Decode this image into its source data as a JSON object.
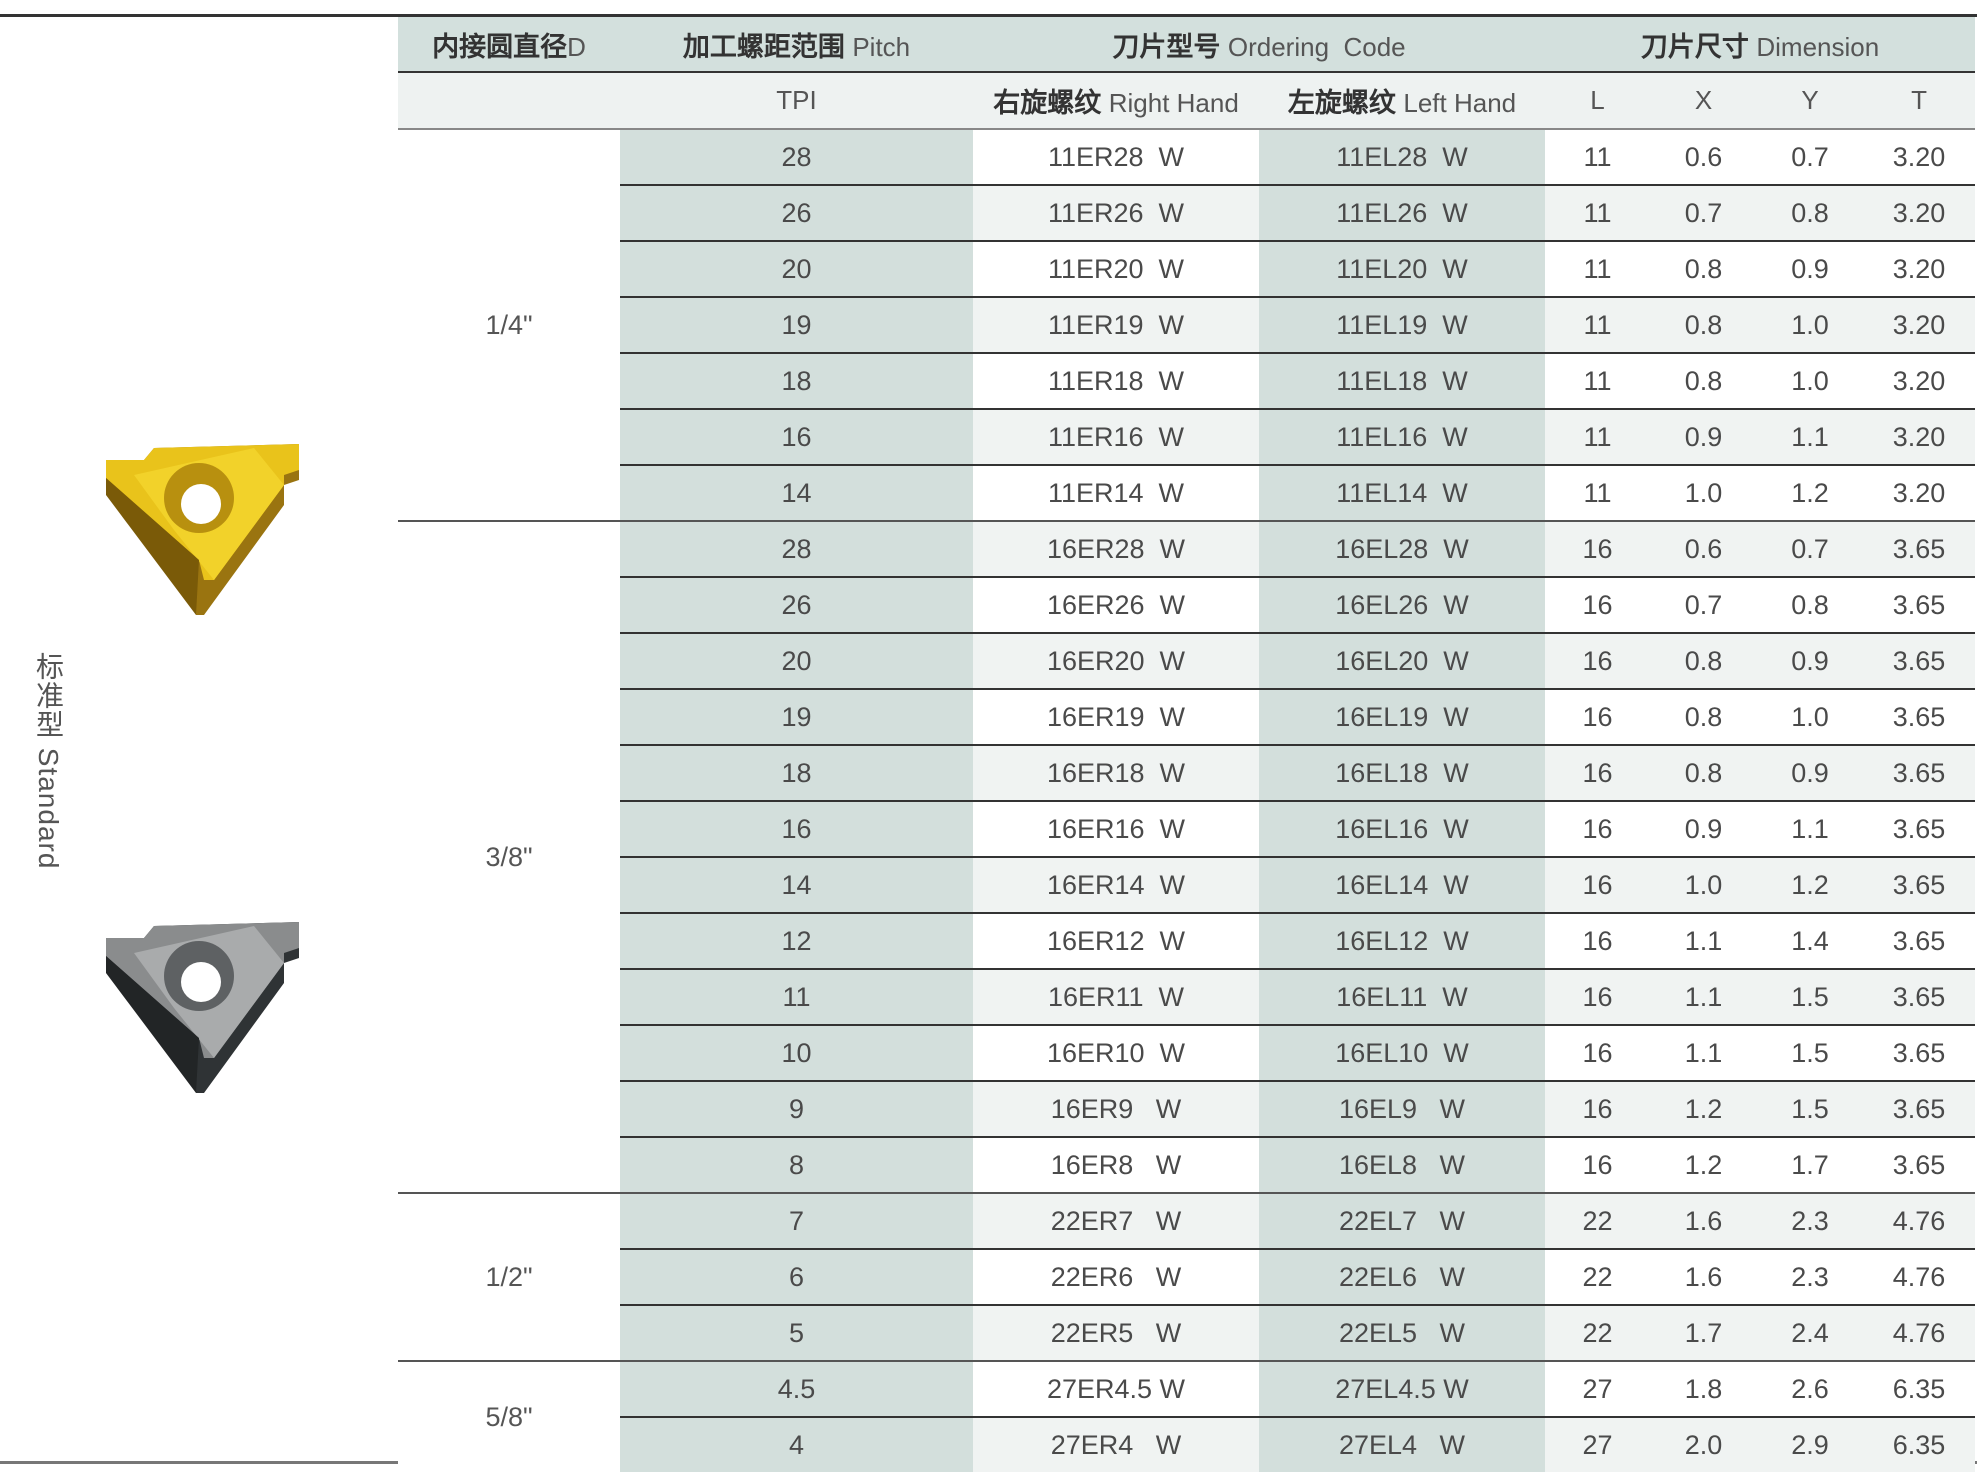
{
  "side_label": "标准型 Standard",
  "header": {
    "d": {
      "cn": "内接圆直径",
      "en": "D"
    },
    "pitch": {
      "cn": "加工螺距范围",
      "en": "Pitch"
    },
    "code": {
      "cn": "刀片型号",
      "en": "Ordering  Code"
    },
    "dimension": {
      "cn": "刀片尺寸",
      "en": "Dimension"
    },
    "tpi": "TPI",
    "right": {
      "cn": "右旋螺纹",
      "en": "Right Hand"
    },
    "left": {
      "cn": "左旋螺纹",
      "en": "Left Hand"
    },
    "L": "L",
    "X": "X",
    "Y": "Y",
    "T": "T"
  },
  "colors": {
    "header": "#d3e0dd",
    "shaded_column": "#d3dfdc",
    "alt_row": "#f0f3f2",
    "insert_gold": "#e8c21a",
    "insert_gray": "#6d6f70"
  },
  "images": [
    {
      "icon": "gold-threading-insert"
    },
    {
      "icon": "gray-threading-insert"
    }
  ],
  "groups": [
    {
      "d": "1/4\"",
      "rows": [
        {
          "tpi": "28",
          "right": "11ER28  W",
          "left": "11EL28  W",
          "L": "11",
          "X": "0.6",
          "Y": "0.7",
          "T": "3.20"
        },
        {
          "tpi": "26",
          "right": "11ER26  W",
          "left": "11EL26  W",
          "L": "11",
          "X": "0.7",
          "Y": "0.8",
          "T": "3.20"
        },
        {
          "tpi": "20",
          "right": "11ER20  W",
          "left": "11EL20  W",
          "L": "11",
          "X": "0.8",
          "Y": "0.9",
          "T": "3.20"
        },
        {
          "tpi": "19",
          "right": "11ER19  W",
          "left": "11EL19  W",
          "L": "11",
          "X": "0.8",
          "Y": "1.0",
          "T": "3.20"
        },
        {
          "tpi": "18",
          "right": "11ER18  W",
          "left": "11EL18  W",
          "L": "11",
          "X": "0.8",
          "Y": "1.0",
          "T": "3.20"
        },
        {
          "tpi": "16",
          "right": "11ER16  W",
          "left": "11EL16  W",
          "L": "11",
          "X": "0.9",
          "Y": "1.1",
          "T": "3.20"
        },
        {
          "tpi": "14",
          "right": "11ER14  W",
          "left": "11EL14  W",
          "L": "11",
          "X": "1.0",
          "Y": "1.2",
          "T": "3.20"
        }
      ]
    },
    {
      "d": "3/8\"",
      "rows": [
        {
          "tpi": "28",
          "right": "16ER28  W",
          "left": "16EL28  W",
          "L": "16",
          "X": "0.6",
          "Y": "0.7",
          "T": "3.65"
        },
        {
          "tpi": "26",
          "right": "16ER26  W",
          "left": "16EL26  W",
          "L": "16",
          "X": "0.7",
          "Y": "0.8",
          "T": "3.65"
        },
        {
          "tpi": "20",
          "right": "16ER20  W",
          "left": "16EL20  W",
          "L": "16",
          "X": "0.8",
          "Y": "0.9",
          "T": "3.65"
        },
        {
          "tpi": "19",
          "right": "16ER19  W",
          "left": "16EL19  W",
          "L": "16",
          "X": "0.8",
          "Y": "1.0",
          "T": "3.65"
        },
        {
          "tpi": "18",
          "right": "16ER18  W",
          "left": "16EL18  W",
          "L": "16",
          "X": "0.8",
          "Y": "0.9",
          "T": "3.65"
        },
        {
          "tpi": "16",
          "right": "16ER16  W",
          "left": "16EL16  W",
          "L": "16",
          "X": "0.9",
          "Y": "1.1",
          "T": "3.65"
        },
        {
          "tpi": "14",
          "right": "16ER14  W",
          "left": "16EL14  W",
          "L": "16",
          "X": "1.0",
          "Y": "1.2",
          "T": "3.65"
        },
        {
          "tpi": "12",
          "right": "16ER12  W",
          "left": "16EL12  W",
          "L": "16",
          "X": "1.1",
          "Y": "1.4",
          "T": "3.65"
        },
        {
          "tpi": "11",
          "right": "16ER11  W",
          "left": "16EL11  W",
          "L": "16",
          "X": "1.1",
          "Y": "1.5",
          "T": "3.65"
        },
        {
          "tpi": "10",
          "right": "16ER10  W",
          "left": "16EL10  W",
          "L": "16",
          "X": "1.1",
          "Y": "1.5",
          "T": "3.65"
        },
        {
          "tpi": "9",
          "right": "16ER9   W",
          "left": "16EL9   W",
          "L": "16",
          "X": "1.2",
          "Y": "1.5",
          "T": "3.65"
        },
        {
          "tpi": "8",
          "right": "16ER8   W",
          "left": "16EL8   W",
          "L": "16",
          "X": "1.2",
          "Y": "1.7",
          "T": "3.65"
        }
      ]
    },
    {
      "d": "1/2\"",
      "rows": [
        {
          "tpi": "7",
          "right": "22ER7   W",
          "left": "22EL7   W",
          "L": "22",
          "X": "1.6",
          "Y": "2.3",
          "T": "4.76"
        },
        {
          "tpi": "6",
          "right": "22ER6   W",
          "left": "22EL6   W",
          "L": "22",
          "X": "1.6",
          "Y": "2.3",
          "T": "4.76"
        },
        {
          "tpi": "5",
          "right": "22ER5   W",
          "left": "22EL5   W",
          "L": "22",
          "X": "1.7",
          "Y": "2.4",
          "T": "4.76"
        }
      ]
    },
    {
      "d": "5/8\"",
      "rows": [
        {
          "tpi": "4.5",
          "right": "27ER4.5 W",
          "left": "27EL4.5 W",
          "L": "27",
          "X": "1.8",
          "Y": "2.6",
          "T": "6.35"
        },
        {
          "tpi": "4",
          "right": "27ER4   W",
          "left": "27EL4   W",
          "L": "27",
          "X": "2.0",
          "Y": "2.9",
          "T": "6.35"
        }
      ]
    }
  ]
}
